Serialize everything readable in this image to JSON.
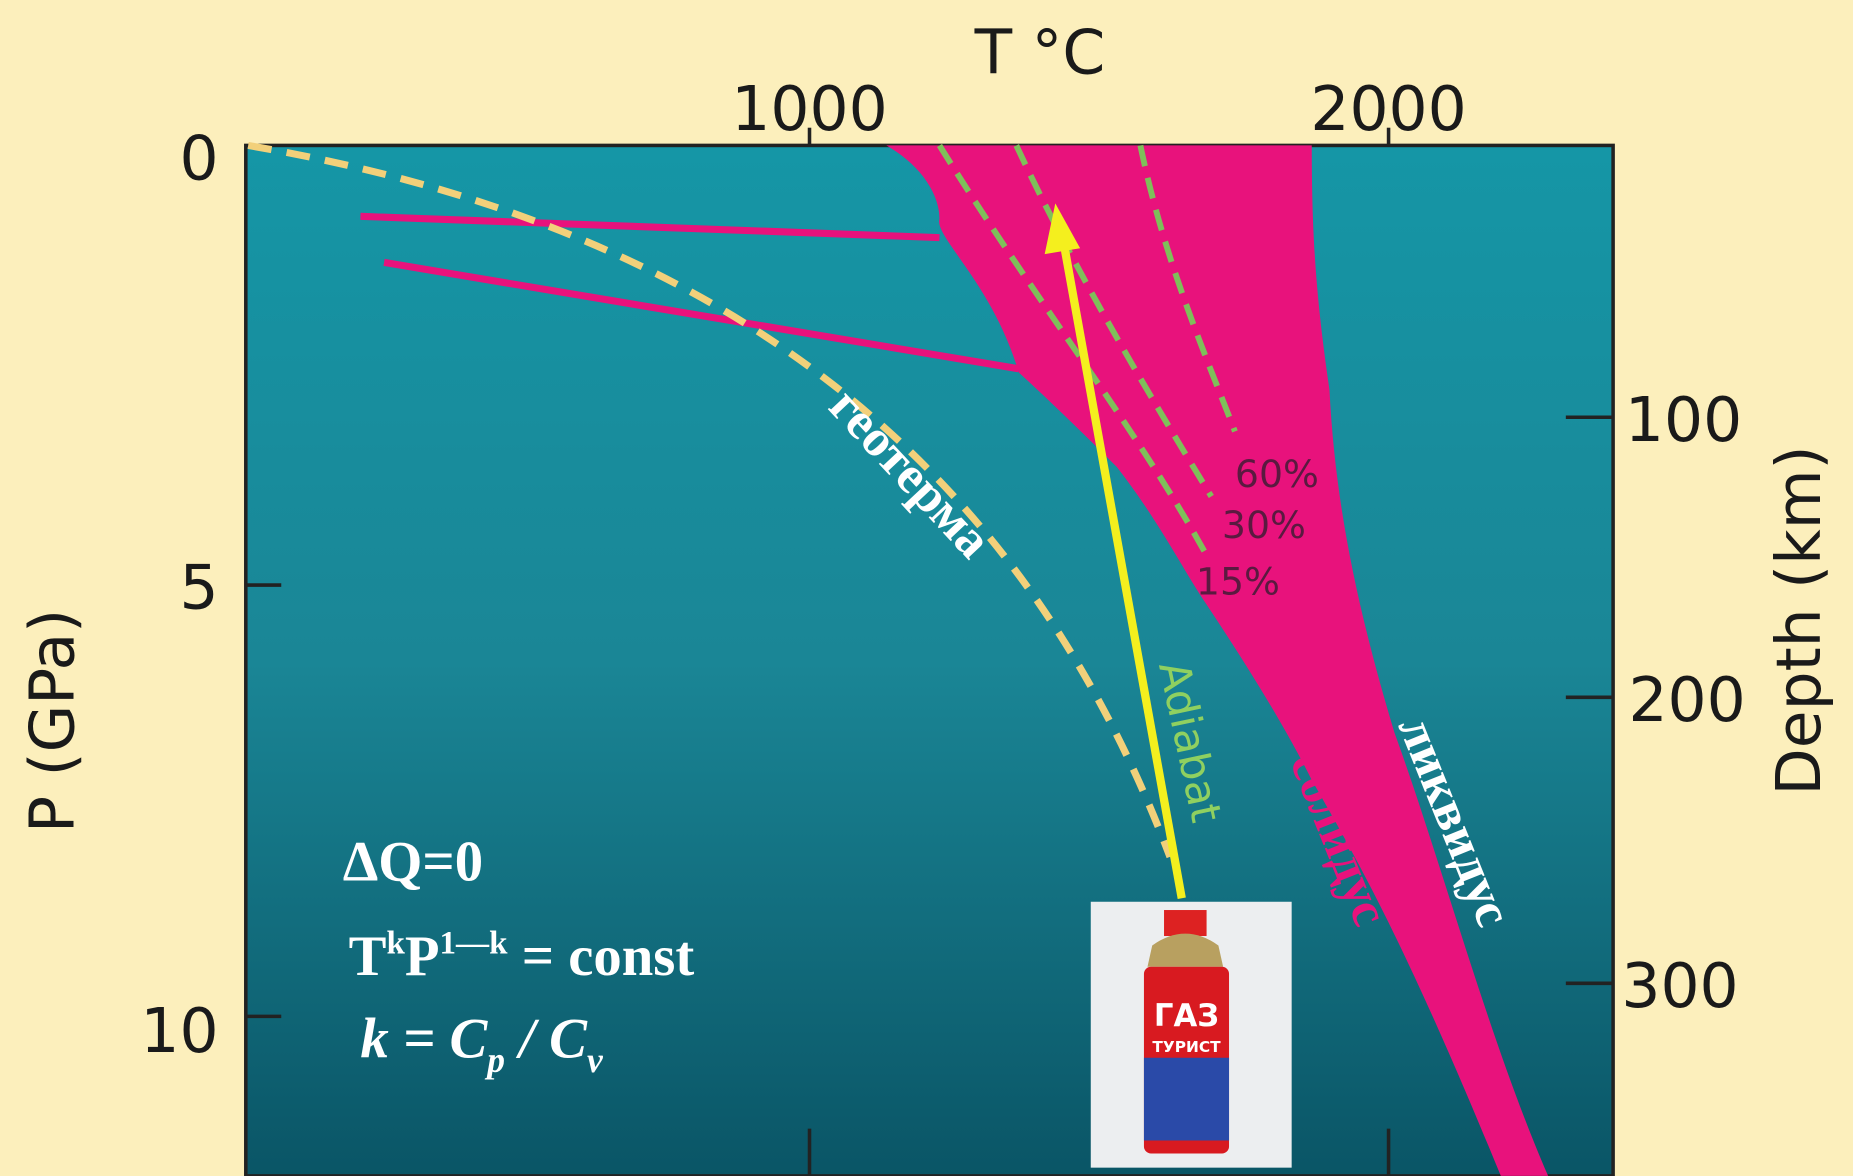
{
  "axes": {
    "top_title": "T °C",
    "left_title": "P (GPa)",
    "right_title": "Depth (km)",
    "top_ticks": [
      "1000",
      "2000"
    ],
    "left_ticks": [
      "0",
      "5",
      "10"
    ],
    "right_ticks": [
      "100",
      "200",
      "300"
    ]
  },
  "labels": {
    "geotherm": "геотерма",
    "adiabat": "Adiabat",
    "solidus": "солидус",
    "liquidus": "ликвидус",
    "melt_60": "60%",
    "melt_30": "30%",
    "melt_15": "15%"
  },
  "formulas": {
    "line1": "ΔQ=0",
    "line2_t": "T",
    "line2_k": "k",
    "line2_p": "P",
    "line2_exp": "1—k",
    "line2_rest": " = const",
    "line3_k": "k = C",
    "line3_p": "p",
    "line3_slash": " / C",
    "line3_v": "v"
  },
  "can": {
    "brand": "ГАЗ",
    "name": "ТУРИСТ"
  }
}
